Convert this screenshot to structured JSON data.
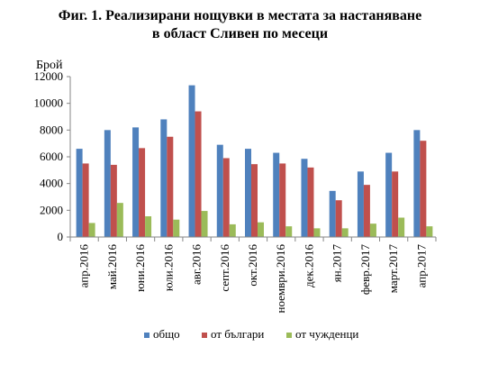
{
  "title_line1": "Фиг. 1. Реализирани нощувки в местата за настаняване",
  "title_line2": "в област Сливен по месеци",
  "chart_data": {
    "type": "bar",
    "ylabel": "Брой",
    "ylim": [
      0,
      12000
    ],
    "yticks": [
      0,
      2000,
      4000,
      6000,
      8000,
      10000,
      12000
    ],
    "grid": false,
    "legend_position": "bottom",
    "categories": [
      "апр.2016",
      "май.2016",
      "юни.2016",
      "юли.2016",
      "авг.2016",
      "септ.2016",
      "окт.2016",
      "ноември.2016",
      "дек.2016",
      "ян.2017",
      "февр.2017",
      "март.2017",
      "апр.2017"
    ],
    "series": [
      {
        "name": "общо",
        "color": "#4F81BD",
        "values": [
          6600,
          8000,
          8200,
          8800,
          11350,
          6900,
          6600,
          6300,
          5850,
          3450,
          4900,
          6300,
          8000
        ]
      },
      {
        "name": "от българи",
        "color": "#C0504D",
        "values": [
          5500,
          5400,
          6650,
          7500,
          9400,
          5900,
          5450,
          5500,
          5200,
          2750,
          3900,
          4900,
          7200
        ]
      },
      {
        "name": "от чужденци",
        "color": "#9BBB59",
        "values": [
          1050,
          2550,
          1550,
          1300,
          1950,
          950,
          1100,
          800,
          650,
          650,
          1000,
          1450,
          800
        ]
      }
    ]
  }
}
